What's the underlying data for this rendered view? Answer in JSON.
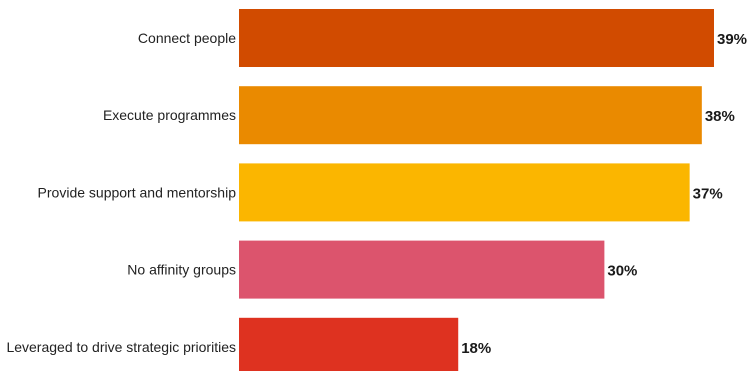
{
  "chart_data": {
    "type": "bar",
    "orientation": "horizontal",
    "categories": [
      "Connect people",
      "Execute programmes",
      "Provide support and mentorship",
      "No affinity groups",
      "Leveraged to drive strategic priorities"
    ],
    "values": [
      39,
      38,
      37,
      30,
      18
    ],
    "value_labels": [
      "39%",
      "38%",
      "37%",
      "30%",
      "18%"
    ],
    "colors": [
      "#d14b00",
      "#ea8a00",
      "#fbb600",
      "#dc546d",
      "#de3220"
    ],
    "xlim": [
      0,
      39
    ],
    "grid": false,
    "legend": "none",
    "title": "",
    "xlabel": "",
    "ylabel": ""
  }
}
